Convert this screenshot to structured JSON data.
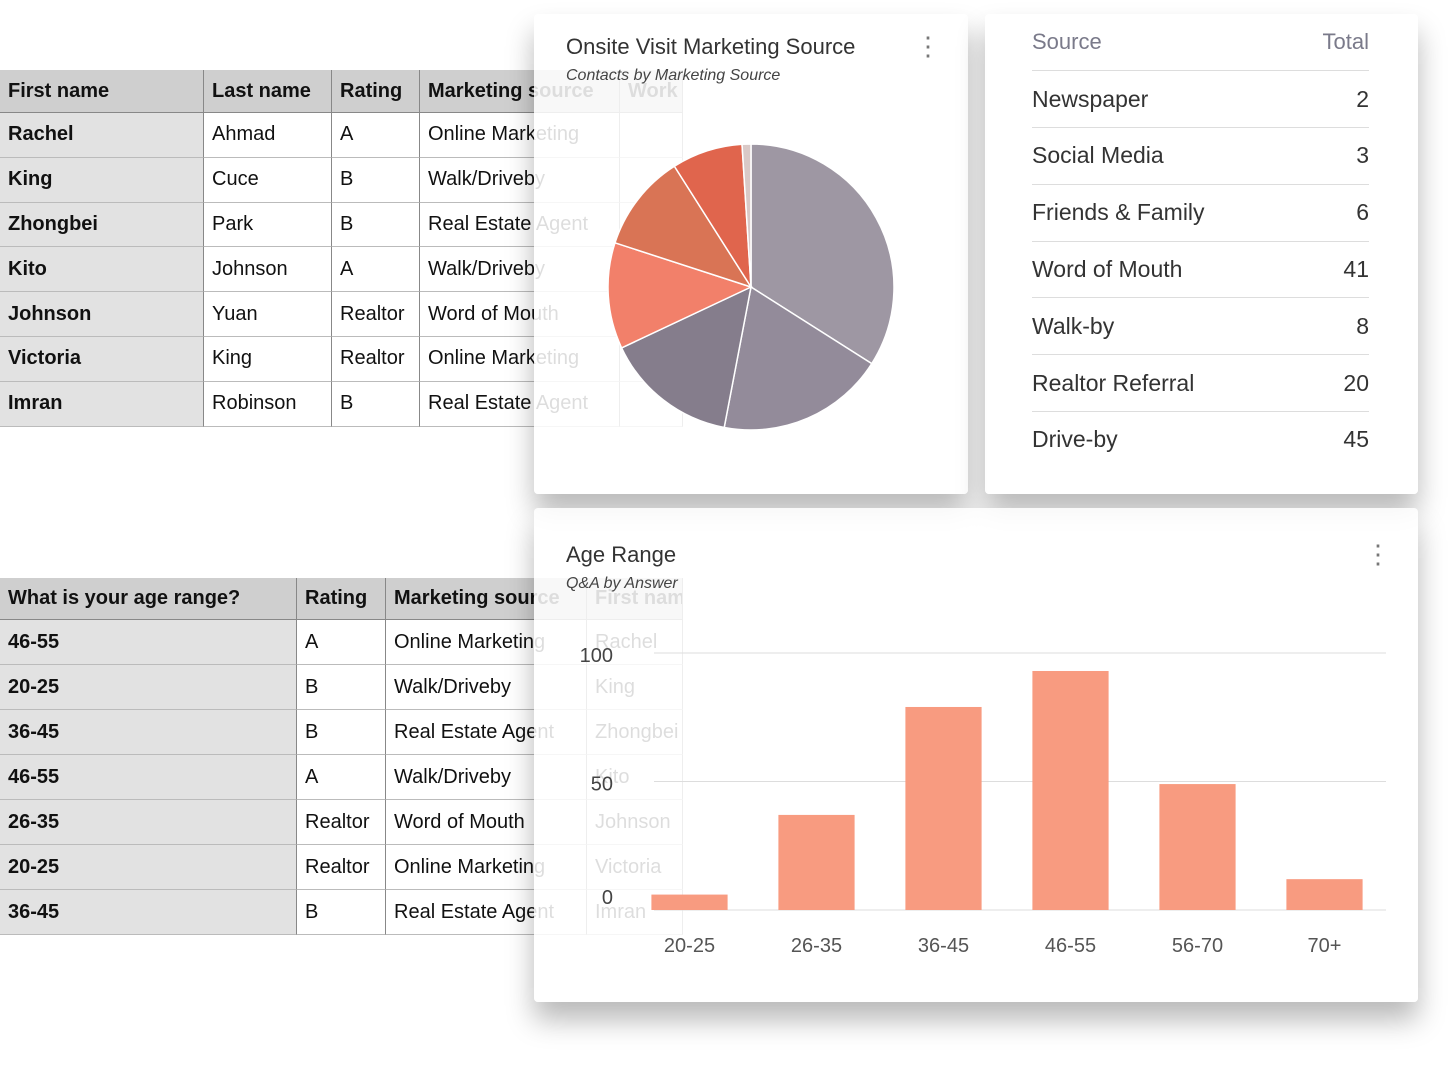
{
  "sheets": [
    {
      "headers": [
        "First name",
        "Last name",
        "Rating",
        "Marketing source",
        "Work"
      ],
      "rows": [
        [
          "Rachel",
          "Ahmad",
          "A",
          "Online Marketing"
        ],
        [
          "King",
          "Cuce",
          "B",
          "Walk/Driveby"
        ],
        [
          "Zhongbei",
          "Park",
          "B",
          "Real Estate Agent"
        ],
        [
          "Kito",
          "Johnson",
          "A",
          "Walk/Driveby"
        ],
        [
          "Johnson",
          "Yuan",
          "Realtor",
          "Word of Mouth"
        ],
        [
          "Victoria",
          "King",
          "Realtor",
          "Online Marketing"
        ],
        [
          "Imran",
          "Robinson",
          "B",
          "Real Estate Agent"
        ]
      ]
    },
    {
      "headers": [
        "What is your age range?",
        "Rating",
        "Marketing source",
        "First name"
      ],
      "rows": [
        [
          "46-55",
          "A",
          "Online Marketing",
          "Rachel"
        ],
        [
          "20-25",
          "B",
          "Walk/Driveby",
          "King"
        ],
        [
          "36-45",
          "B",
          "Real Estate Agent",
          "Zhongbei"
        ],
        [
          "46-55",
          "A",
          "Walk/Driveby",
          "Kito"
        ],
        [
          "26-35",
          "Realtor",
          "Word of Mouth",
          "Johnson"
        ],
        [
          "20-25",
          "Realtor",
          "Online Marketing",
          "Victoria"
        ],
        [
          "36-45",
          "B",
          "Real Estate Agent",
          "Imran"
        ]
      ]
    }
  ],
  "chart_data": [
    {
      "type": "pie",
      "title": "Onsite Visit Marketing Source",
      "subtitle": "Contacts by Marketing Source",
      "values": [
        34,
        19,
        15,
        12,
        11,
        8,
        1
      ],
      "colors": [
        "#9e97a3",
        "#938b9a",
        "#857d8c",
        "#f2806a",
        "#d97455",
        "#e0654d",
        "#d9c9c7"
      ]
    },
    {
      "type": "bar",
      "title": "Age Range",
      "subtitle": "Q&A by Answer",
      "categories": [
        "20-25",
        "26-35",
        "36-45",
        "46-55",
        "56-70",
        "70+"
      ],
      "values": [
        6,
        37,
        79,
        93,
        49,
        12
      ],
      "color": "#f89b80",
      "ylim": [
        0,
        100
      ],
      "yticks": [
        0,
        50,
        100
      ],
      "grid": true
    }
  ],
  "source_table": {
    "headers": [
      "Source",
      "Total"
    ],
    "rows": [
      [
        "Newspaper",
        "2"
      ],
      [
        "Social Media",
        "3"
      ],
      [
        "Friends & Family",
        "6"
      ],
      [
        "Word of Mouth",
        "41"
      ],
      [
        "Walk-by",
        "8"
      ],
      [
        "Realtor Referral",
        "20"
      ],
      [
        "Drive-by",
        "45"
      ]
    ]
  }
}
